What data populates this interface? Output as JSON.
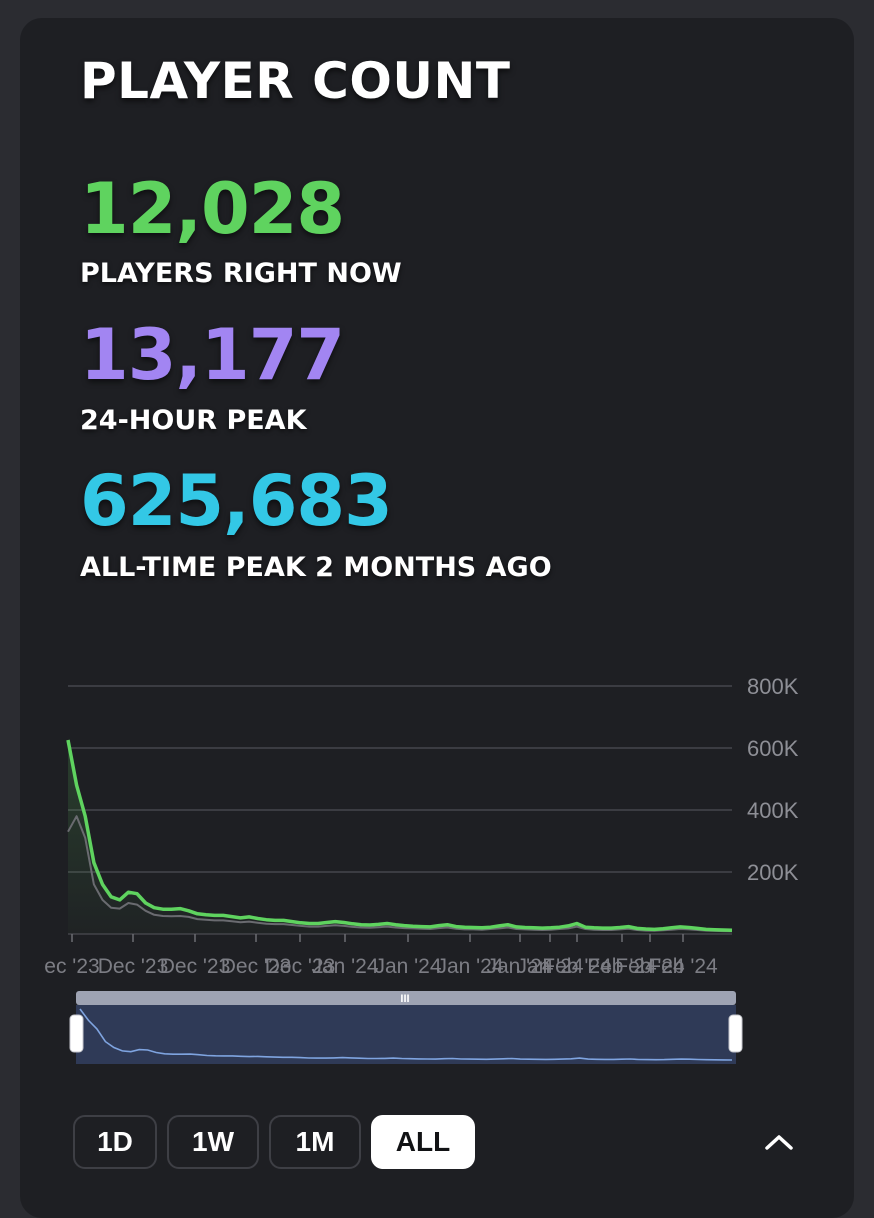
{
  "title": "PLAYER COUNT",
  "stats": {
    "current": {
      "value": "12,028",
      "label": "PLAYERS RIGHT NOW",
      "color": "#5fd35f"
    },
    "peak24h": {
      "value": "13,177",
      "label": "24-HOUR PEAK",
      "color": "#a285f2"
    },
    "alltime": {
      "value": "625,683",
      "label": "ALL-TIME PEAK 2 MONTHS AGO",
      "color": "#33c8e6"
    }
  },
  "chart_data": {
    "type": "line",
    "title": "",
    "xlabel": "",
    "ylabel": "",
    "ylim": [
      0,
      800000
    ],
    "y_ticks": [
      "800K",
      "600K",
      "400K",
      "200K"
    ],
    "x_tick_labels": [
      "ec '23",
      "Dec '23",
      "Dec '23",
      "Dec '23",
      "Dec '23",
      "Jan '24",
      "Jan '24",
      "Jan '24",
      "Jan '24",
      "Jan '24",
      "Feb '24",
      "Feb '24",
      "Feb '24",
      "Feb '24"
    ],
    "grid": true,
    "legend": "none",
    "series": [
      {
        "color": "#5fd35f",
        "values": [
          625683,
          480000,
          380000,
          230000,
          160000,
          120000,
          110000,
          135000,
          130000,
          100000,
          85000,
          80000,
          80000,
          82000,
          75000,
          65000,
          62000,
          60000,
          60000,
          56000,
          52000,
          55000,
          50000,
          46000,
          44000,
          44000,
          40000,
          36000,
          34000,
          34000,
          37000,
          40000,
          37000,
          33000,
          30000,
          29000,
          31000,
          34000,
          30000,
          27000,
          25000,
          24000,
          23000,
          27000,
          30000,
          24000,
          22000,
          21000,
          20000,
          22000,
          26000,
          30000,
          23000,
          21000,
          20000,
          19000,
          20000,
          22000,
          26000,
          34000,
          22000,
          20000,
          19000,
          19000,
          21000,
          24000,
          18000,
          16000,
          15000,
          17000,
          20000,
          23000,
          21000,
          18000,
          15000,
          14000,
          13000,
          12028
        ]
      },
      {
        "color": "#6a6b70",
        "values": [
          330000,
          380000,
          310000,
          160000,
          110000,
          85000,
          82000,
          100000,
          95000,
          75000,
          62000,
          58000,
          57000,
          58000,
          55000,
          48000,
          46000,
          44000,
          44000,
          41000,
          38000,
          40000,
          36000,
          33000,
          32000,
          32000,
          29000,
          26000,
          24000,
          24000,
          26000,
          28000,
          26000,
          23000,
          21000,
          20000,
          22000,
          24000,
          21000,
          19000,
          18000,
          17000,
          16000,
          19000,
          21000,
          17000,
          15000,
          15000,
          14000,
          16000,
          18000,
          21000,
          16000,
          15000,
          14000,
          13000,
          14000,
          16000,
          18000,
          24000,
          16000,
          14000,
          13000,
          13000,
          15000,
          17000,
          13000,
          11000,
          10500,
          12000,
          14000,
          16000,
          15000,
          13000,
          11000,
          10000,
          9500,
          9000
        ]
      }
    ]
  },
  "navigator": {
    "handle_glyph": "III"
  },
  "range_buttons": [
    {
      "label": "1D"
    },
    {
      "label": "1W"
    },
    {
      "label": "1M"
    },
    {
      "label": "ALL",
      "active": true
    }
  ],
  "collapse_icon": "chevron-up-icon"
}
